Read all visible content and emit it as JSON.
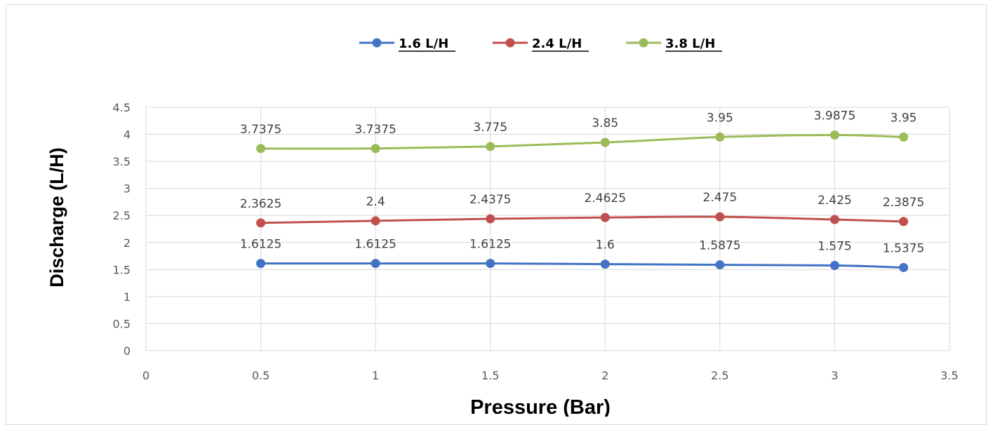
{
  "chart_data": {
    "type": "line",
    "xlabel": "Pressure (Bar)",
    "ylabel": "Discharge (L/H)",
    "xlim": [
      0,
      3.5
    ],
    "ylim": [
      0,
      4.5
    ],
    "x_ticks": [
      "0",
      "0.5",
      "1",
      "1.5",
      "2",
      "2.5",
      "3",
      "3.5"
    ],
    "y_ticks": [
      "0",
      "0.5",
      "1",
      "1.5",
      "2",
      "2.5",
      "3",
      "3.5",
      "4",
      "4.5"
    ],
    "grid": "horizontal and vertical",
    "legend_position": "top",
    "smooth": true,
    "x": [
      0.5,
      1,
      1.5,
      2,
      2.5,
      3,
      3.3
    ],
    "series": [
      {
        "name": "1.6 L/H",
        "color": "#4472c4",
        "values": [
          1.6125,
          1.6125,
          1.6125,
          1.6,
          1.5875,
          1.575,
          1.5375
        ],
        "labels": [
          "1.6125",
          "1.6125",
          "1.6125",
          "1.6",
          "1.5875",
          "1.575",
          "1.5375"
        ]
      },
      {
        "name": "2.4 L/H",
        "color": "#c0504d",
        "values": [
          2.3625,
          2.4,
          2.4375,
          2.4625,
          2.475,
          2.425,
          2.3875
        ],
        "labels": [
          "2.3625",
          "2.4",
          "2.4375",
          "2.4625",
          "2.475",
          "2.425",
          "2.3875"
        ]
      },
      {
        "name": "3.8 L/H",
        "color": "#9bbb59",
        "values": [
          3.7375,
          3.7375,
          3.775,
          3.85,
          3.95,
          3.9875,
          3.95
        ],
        "labels": [
          "3.7375",
          "3.7375",
          "3.775",
          "3.85",
          "3.95",
          "3.9875",
          "3.95"
        ]
      }
    ]
  }
}
